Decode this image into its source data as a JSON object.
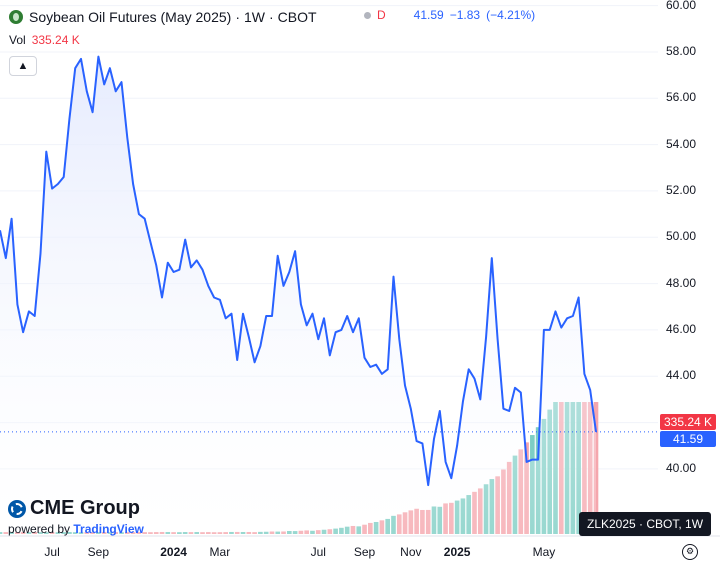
{
  "header": {
    "title": "Soybean Oil Futures (May 2025)",
    "interval": "1W",
    "exchange": "CBOT",
    "d_label": "D",
    "last": "41.59",
    "change": "−1.83",
    "change_pct": "(−4.21%)",
    "vol_label": "Vol",
    "vol_value": "335.24 K"
  },
  "badges": {
    "volume_tag": "335.24 K",
    "price_tag": "41.59",
    "symbol_tag": "ZLK2025 · CBOT, 1W"
  },
  "branding": {
    "cme": "CME Group",
    "powered_by": "powered by",
    "tradingview": "TradingView"
  },
  "colors": {
    "line": "#2962ff",
    "area": "#e3e9fd",
    "vol_up": "#7ecec4",
    "vol_down": "#f5a6ad",
    "vol_tag": "#f23645",
    "price_tag": "#2962ff"
  },
  "chart_data": {
    "type": "area",
    "y_ticks": [
      "40.00",
      "42.00",
      "44.00",
      "46.00",
      "48.00",
      "50.00",
      "52.00",
      "54.00",
      "56.00",
      "58.00",
      "60.00"
    ],
    "ylim": [
      38.7,
      60.2
    ],
    "x_labels": [
      {
        "label": "Jul",
        "i": 9,
        "bold": false
      },
      {
        "label": "Sep",
        "i": 17,
        "bold": false
      },
      {
        "label": "2024",
        "i": 30,
        "bold": true
      },
      {
        "label": "Mar",
        "i": 38,
        "bold": false
      },
      {
        "label": "Jul",
        "i": 55,
        "bold": false
      },
      {
        "label": "Sep",
        "i": 63,
        "bold": false
      },
      {
        "label": "Nov",
        "i": 71,
        "bold": false
      },
      {
        "label": "2025",
        "i": 79,
        "bold": true
      },
      {
        "label": "May",
        "i": 94,
        "bold": false
      }
    ],
    "series": [
      {
        "values": [
          50.3,
          49.1,
          50.8,
          47.1,
          45.9,
          46.8,
          46.6,
          49.3,
          53.7,
          52.1,
          52.3,
          52.6,
          55.1,
          57.3,
          57.7,
          56.3,
          55.4,
          57.8,
          56.6,
          57.3,
          56.3,
          56.7,
          54.3,
          52.3,
          51.0,
          50.8,
          49.8,
          48.8,
          47.4,
          48.9,
          48.5,
          48.6,
          49.9,
          48.7,
          49.0,
          48.6,
          47.9,
          47.4,
          47.3,
          46.5,
          46.7,
          44.7,
          46.7,
          45.7,
          44.6,
          45.3,
          46.6,
          46.6,
          49.2,
          47.9,
          48.5,
          49.4,
          47.1,
          46.2,
          46.7,
          45.6,
          46.5,
          44.9,
          45.9,
          46.0,
          46.6,
          45.9,
          46.5,
          44.8,
          44.4,
          44.5,
          44.1,
          44.3,
          48.3,
          45.6,
          43.6,
          42.6,
          41.2,
          41.1,
          39.3,
          41.3,
          42.5,
          40.3,
          39.6,
          41.0,
          42.9,
          44.3,
          43.9,
          43.0,
          45.7,
          49.1,
          45.6,
          42.6,
          42.5,
          43.5,
          43.3,
          40.3,
          40.4,
          40.4,
          46.0,
          46.0,
          46.8,
          46.1,
          46.5,
          46.6,
          47.4,
          44.1,
          43.4,
          41.6
        ],
        "volume": [
          4.9,
          4.9,
          5.0,
          4.7,
          4.9,
          4.7,
          5.1,
          4.7,
          4.5,
          4.9,
          4.7,
          4.8,
          5.1,
          4.7,
          4.5,
          5.1,
          4.9,
          4.9,
          5.2,
          4.7,
          4.9,
          4.7,
          5.1,
          4.7,
          5.0,
          4.8,
          4.6,
          4.9,
          5.1,
          5.0,
          4.7,
          4.6,
          5.0,
          4.8,
          5.0,
          4.6,
          4.9,
          4.5,
          4.6,
          4.8,
          5.2,
          5.2,
          5.1,
          5.1,
          4.7,
          5.4,
          5.7,
          6.3,
          6.1,
          6.4,
          7.6,
          7.4,
          8.2,
          9.1,
          8.2,
          9.8,
          10.8,
          12.1,
          13.7,
          15.7,
          18.6,
          20.4,
          19.4,
          23.6,
          28.1,
          30.5,
          34.7,
          38.3,
          46.1,
          49.8,
          55.1,
          60.0,
          64.1,
          61.0,
          61.1,
          69.9,
          69.1,
          77.7,
          79.2,
          84.9,
          90.3,
          98.9,
          107.1,
          115.8,
          126.3,
          139.5,
          146.5,
          163.8,
          183.1,
          199.1,
          214.9,
          232.7,
          251.3,
          271.2,
          292.3,
          315.9,
          335.2,
          335.2,
          335.2,
          335.2,
          335.2,
          335.2,
          335.2,
          335.2
        ],
        "volume_up": [
          true,
          false,
          true,
          false,
          false,
          true,
          false,
          true,
          true,
          false,
          true,
          true,
          true,
          true,
          true,
          false,
          false,
          true,
          false,
          true,
          false,
          true,
          false,
          false,
          false,
          false,
          false,
          false,
          false,
          true,
          false,
          true,
          true,
          false,
          true,
          false,
          false,
          false,
          false,
          false,
          true,
          false,
          true,
          false,
          false,
          true,
          true,
          false,
          true,
          false,
          true,
          true,
          false,
          false,
          true,
          false,
          true,
          false,
          true,
          true,
          true,
          false,
          true,
          false,
          false,
          true,
          false,
          true,
          true,
          false,
          false,
          false,
          false,
          false,
          false,
          true,
          true,
          false,
          false,
          true,
          true,
          true,
          false,
          false,
          true,
          true,
          false,
          false,
          false,
          true,
          false,
          false,
          true,
          true,
          true,
          true,
          true,
          false,
          true,
          true,
          true,
          false,
          false,
          false
        ]
      }
    ]
  }
}
